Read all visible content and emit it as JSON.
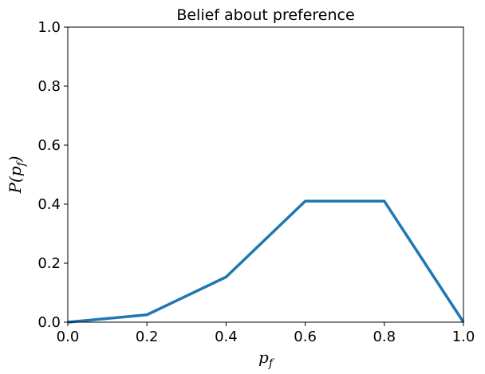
{
  "chart_data": {
    "type": "line",
    "title": "Belief about preference",
    "xlabel": {
      "main": "p",
      "sub": "f"
    },
    "ylabel": {
      "prefix": "P(",
      "main": "p",
      "sub": "f",
      "suffix": ")"
    },
    "xlim": [
      0.0,
      1.0
    ],
    "ylim": [
      0.0,
      1.0
    ],
    "xticks": [
      0.0,
      0.2,
      0.4,
      0.6,
      0.8,
      1.0
    ],
    "xtick_labels": [
      "0.0",
      "0.2",
      "0.4",
      "0.6",
      "0.8",
      "1.0"
    ],
    "yticks": [
      0.0,
      0.2,
      0.4,
      0.6,
      0.8,
      1.0
    ],
    "ytick_labels": [
      "0.0",
      "0.2",
      "0.4",
      "0.6",
      "0.8",
      "1.0"
    ],
    "grid": false,
    "series": [
      {
        "color": "#1f77b4",
        "x": [
          0.0,
          0.2,
          0.4,
          0.6,
          0.8,
          1.0
        ],
        "y": [
          0.0,
          0.025,
          0.153,
          0.41,
          0.41,
          0.0
        ]
      }
    ]
  }
}
